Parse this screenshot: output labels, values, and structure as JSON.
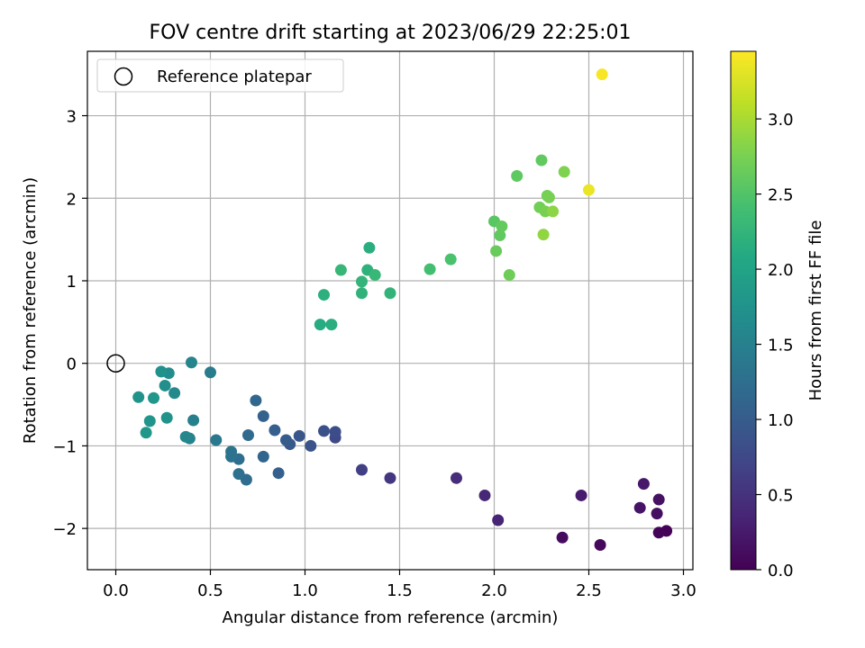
{
  "chart_data": {
    "type": "scatter",
    "title": "FOV centre drift starting at 2023/06/29 22:25:01",
    "xlabel": "Angular distance from reference (arcmin)",
    "ylabel": "Rotation from reference (arcmin)",
    "xlim": [
      -0.15,
      3.05
    ],
    "ylim": [
      -2.5,
      3.78
    ],
    "xticks": [
      0.0,
      0.5,
      1.0,
      1.5,
      2.0,
      2.5,
      3.0
    ],
    "yticks": [
      -2,
      -1,
      0,
      1,
      2,
      3
    ],
    "xtick_labels": [
      "0.0",
      "0.5",
      "1.0",
      "1.5",
      "2.0",
      "2.5",
      "3.0"
    ],
    "ytick_labels": [
      "−2",
      "−1",
      "0",
      "1",
      "2",
      "3"
    ],
    "grid": true,
    "legend": {
      "placement": "top-left",
      "entries": [
        "Reference platepar"
      ]
    },
    "reference_point": {
      "x": 0.0,
      "y": 0.0
    },
    "colorbar": {
      "label": "Hours from first FF file",
      "colormap": "viridis",
      "range": [
        0.0,
        3.45
      ],
      "ticks": [
        0.0,
        0.5,
        1.0,
        1.5,
        2.0,
        2.5,
        3.0
      ],
      "tick_labels": [
        "0.0",
        "0.5",
        "1.0",
        "1.5",
        "2.0",
        "2.5",
        "3.0"
      ]
    },
    "points": [
      {
        "x": 2.91,
        "y": -2.03,
        "c": 0.02
      },
      {
        "x": 2.87,
        "y": -2.05,
        "c": 0.04
      },
      {
        "x": 2.56,
        "y": -2.2,
        "c": 0.07
      },
      {
        "x": 2.36,
        "y": -2.11,
        "c": 0.1
      },
      {
        "x": 2.86,
        "y": -1.82,
        "c": 0.13
      },
      {
        "x": 2.87,
        "y": -1.65,
        "c": 0.16
      },
      {
        "x": 2.77,
        "y": -1.75,
        "c": 0.19
      },
      {
        "x": 2.79,
        "y": -1.46,
        "c": 0.22
      },
      {
        "x": 2.46,
        "y": -1.6,
        "c": 0.26
      },
      {
        "x": 2.02,
        "y": -1.9,
        "c": 0.35
      },
      {
        "x": 1.95,
        "y": -1.6,
        "c": 0.39
      },
      {
        "x": 1.8,
        "y": -1.39,
        "c": 0.45
      },
      {
        "x": 1.45,
        "y": -1.39,
        "c": 0.55
      },
      {
        "x": 1.3,
        "y": -1.29,
        "c": 0.65
      },
      {
        "x": 1.16,
        "y": -0.9,
        "c": 0.75
      },
      {
        "x": 1.16,
        "y": -0.83,
        "c": 0.8
      },
      {
        "x": 1.1,
        "y": -0.82,
        "c": 0.85
      },
      {
        "x": 1.03,
        "y": -1.0,
        "c": 0.88
      },
      {
        "x": 0.97,
        "y": -0.88,
        "c": 0.92
      },
      {
        "x": 0.92,
        "y": -0.98,
        "c": 0.96
      },
      {
        "x": 0.9,
        "y": -0.93,
        "c": 1.0
      },
      {
        "x": 0.84,
        "y": -0.81,
        "c": 1.03
      },
      {
        "x": 0.86,
        "y": -1.33,
        "c": 1.05
      },
      {
        "x": 0.78,
        "y": -0.64,
        "c": 1.08
      },
      {
        "x": 0.78,
        "y": -1.13,
        "c": 1.12
      },
      {
        "x": 0.74,
        "y": -0.45,
        "c": 1.15
      },
      {
        "x": 0.7,
        "y": -0.87,
        "c": 1.18
      },
      {
        "x": 0.69,
        "y": -1.41,
        "c": 1.21
      },
      {
        "x": 0.65,
        "y": -1.16,
        "c": 1.24
      },
      {
        "x": 0.65,
        "y": -1.34,
        "c": 1.27
      },
      {
        "x": 0.61,
        "y": -1.13,
        "c": 1.3
      },
      {
        "x": 0.61,
        "y": -1.07,
        "c": 1.33
      },
      {
        "x": 0.53,
        "y": -0.93,
        "c": 1.38
      },
      {
        "x": 0.5,
        "y": -0.11,
        "c": 1.42
      },
      {
        "x": 0.41,
        "y": -0.69,
        "c": 1.48
      },
      {
        "x": 0.4,
        "y": 0.01,
        "c": 1.55
      },
      {
        "x": 0.39,
        "y": -0.91,
        "c": 1.52
      },
      {
        "x": 0.37,
        "y": -0.89,
        "c": 1.58
      },
      {
        "x": 0.31,
        "y": -0.36,
        "c": 1.62
      },
      {
        "x": 0.28,
        "y": -0.12,
        "c": 1.66
      },
      {
        "x": 0.26,
        "y": -0.27,
        "c": 1.7
      },
      {
        "x": 0.24,
        "y": -0.1,
        "c": 1.73
      },
      {
        "x": 0.27,
        "y": -0.66,
        "c": 1.76
      },
      {
        "x": 0.2,
        "y": -0.42,
        "c": 1.8
      },
      {
        "x": 0.18,
        "y": -0.7,
        "c": 1.78
      },
      {
        "x": 0.16,
        "y": -0.84,
        "c": 1.82
      },
      {
        "x": 0.12,
        "y": -0.41,
        "c": 1.76
      },
      {
        "x": 1.08,
        "y": 0.47,
        "c": 2.12
      },
      {
        "x": 1.14,
        "y": 0.47,
        "c": 2.15
      },
      {
        "x": 1.1,
        "y": 0.83,
        "c": 2.18
      },
      {
        "x": 1.3,
        "y": 0.85,
        "c": 2.22
      },
      {
        "x": 1.3,
        "y": 0.99,
        "c": 2.25
      },
      {
        "x": 1.33,
        "y": 1.13,
        "c": 2.2
      },
      {
        "x": 1.19,
        "y": 1.13,
        "c": 2.28
      },
      {
        "x": 1.37,
        "y": 1.07,
        "c": 2.3
      },
      {
        "x": 1.34,
        "y": 1.4,
        "c": 2.16
      },
      {
        "x": 1.45,
        "y": 0.85,
        "c": 2.24
      },
      {
        "x": 1.66,
        "y": 1.14,
        "c": 2.4
      },
      {
        "x": 1.77,
        "y": 1.26,
        "c": 2.45
      },
      {
        "x": 2.0,
        "y": 1.72,
        "c": 2.55
      },
      {
        "x": 2.03,
        "y": 1.55,
        "c": 2.6
      },
      {
        "x": 2.04,
        "y": 1.66,
        "c": 2.62
      },
      {
        "x": 2.01,
        "y": 1.36,
        "c": 2.65
      },
      {
        "x": 2.08,
        "y": 1.07,
        "c": 2.68
      },
      {
        "x": 2.12,
        "y": 2.27,
        "c": 2.58
      },
      {
        "x": 2.25,
        "y": 2.46,
        "c": 2.6
      },
      {
        "x": 2.24,
        "y": 1.89,
        "c": 2.7
      },
      {
        "x": 2.27,
        "y": 1.84,
        "c": 2.75
      },
      {
        "x": 2.28,
        "y": 2.03,
        "c": 2.72
      },
      {
        "x": 2.29,
        "y": 2.01,
        "c": 2.74
      },
      {
        "x": 2.31,
        "y": 1.84,
        "c": 2.85
      },
      {
        "x": 2.26,
        "y": 1.56,
        "c": 2.88
      },
      {
        "x": 2.37,
        "y": 2.32,
        "c": 2.78
      },
      {
        "x": 2.5,
        "y": 2.1,
        "c": 3.35
      },
      {
        "x": 2.57,
        "y": 3.5,
        "c": 3.42
      }
    ]
  }
}
